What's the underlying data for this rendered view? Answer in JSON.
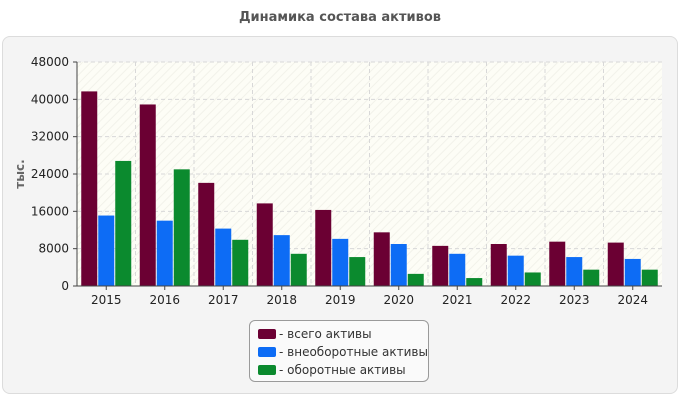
{
  "chart_data": {
    "type": "bar",
    "title": "Динамика состава активов",
    "ylabel": "тыс.",
    "xlabel": "",
    "ylim": [
      0,
      48000
    ],
    "yticks": [
      0,
      8000,
      16000,
      24000,
      32000,
      40000,
      48000
    ],
    "categories": [
      "2015",
      "2016",
      "2017",
      "2018",
      "2019",
      "2020",
      "2021",
      "2022",
      "2023",
      "2024"
    ],
    "series": [
      {
        "name": "- всего активы",
        "color": "#6b0033",
        "values": [
          41700,
          38900,
          22100,
          17700,
          16300,
          11500,
          8600,
          9000,
          9500,
          9300
        ]
      },
      {
        "name": "- внеоборотные активы",
        "color": "#0d6cf5",
        "values": [
          15100,
          14000,
          12300,
          10900,
          10100,
          9000,
          6900,
          6500,
          6200,
          5800
        ]
      },
      {
        "name": "- оборотные активы",
        "color": "#0b8a2e",
        "values": [
          26800,
          25000,
          9900,
          6900,
          6200,
          2600,
          1700,
          2900,
          3500,
          3500
        ]
      }
    ],
    "grid": true,
    "legend": "bottom-center"
  }
}
